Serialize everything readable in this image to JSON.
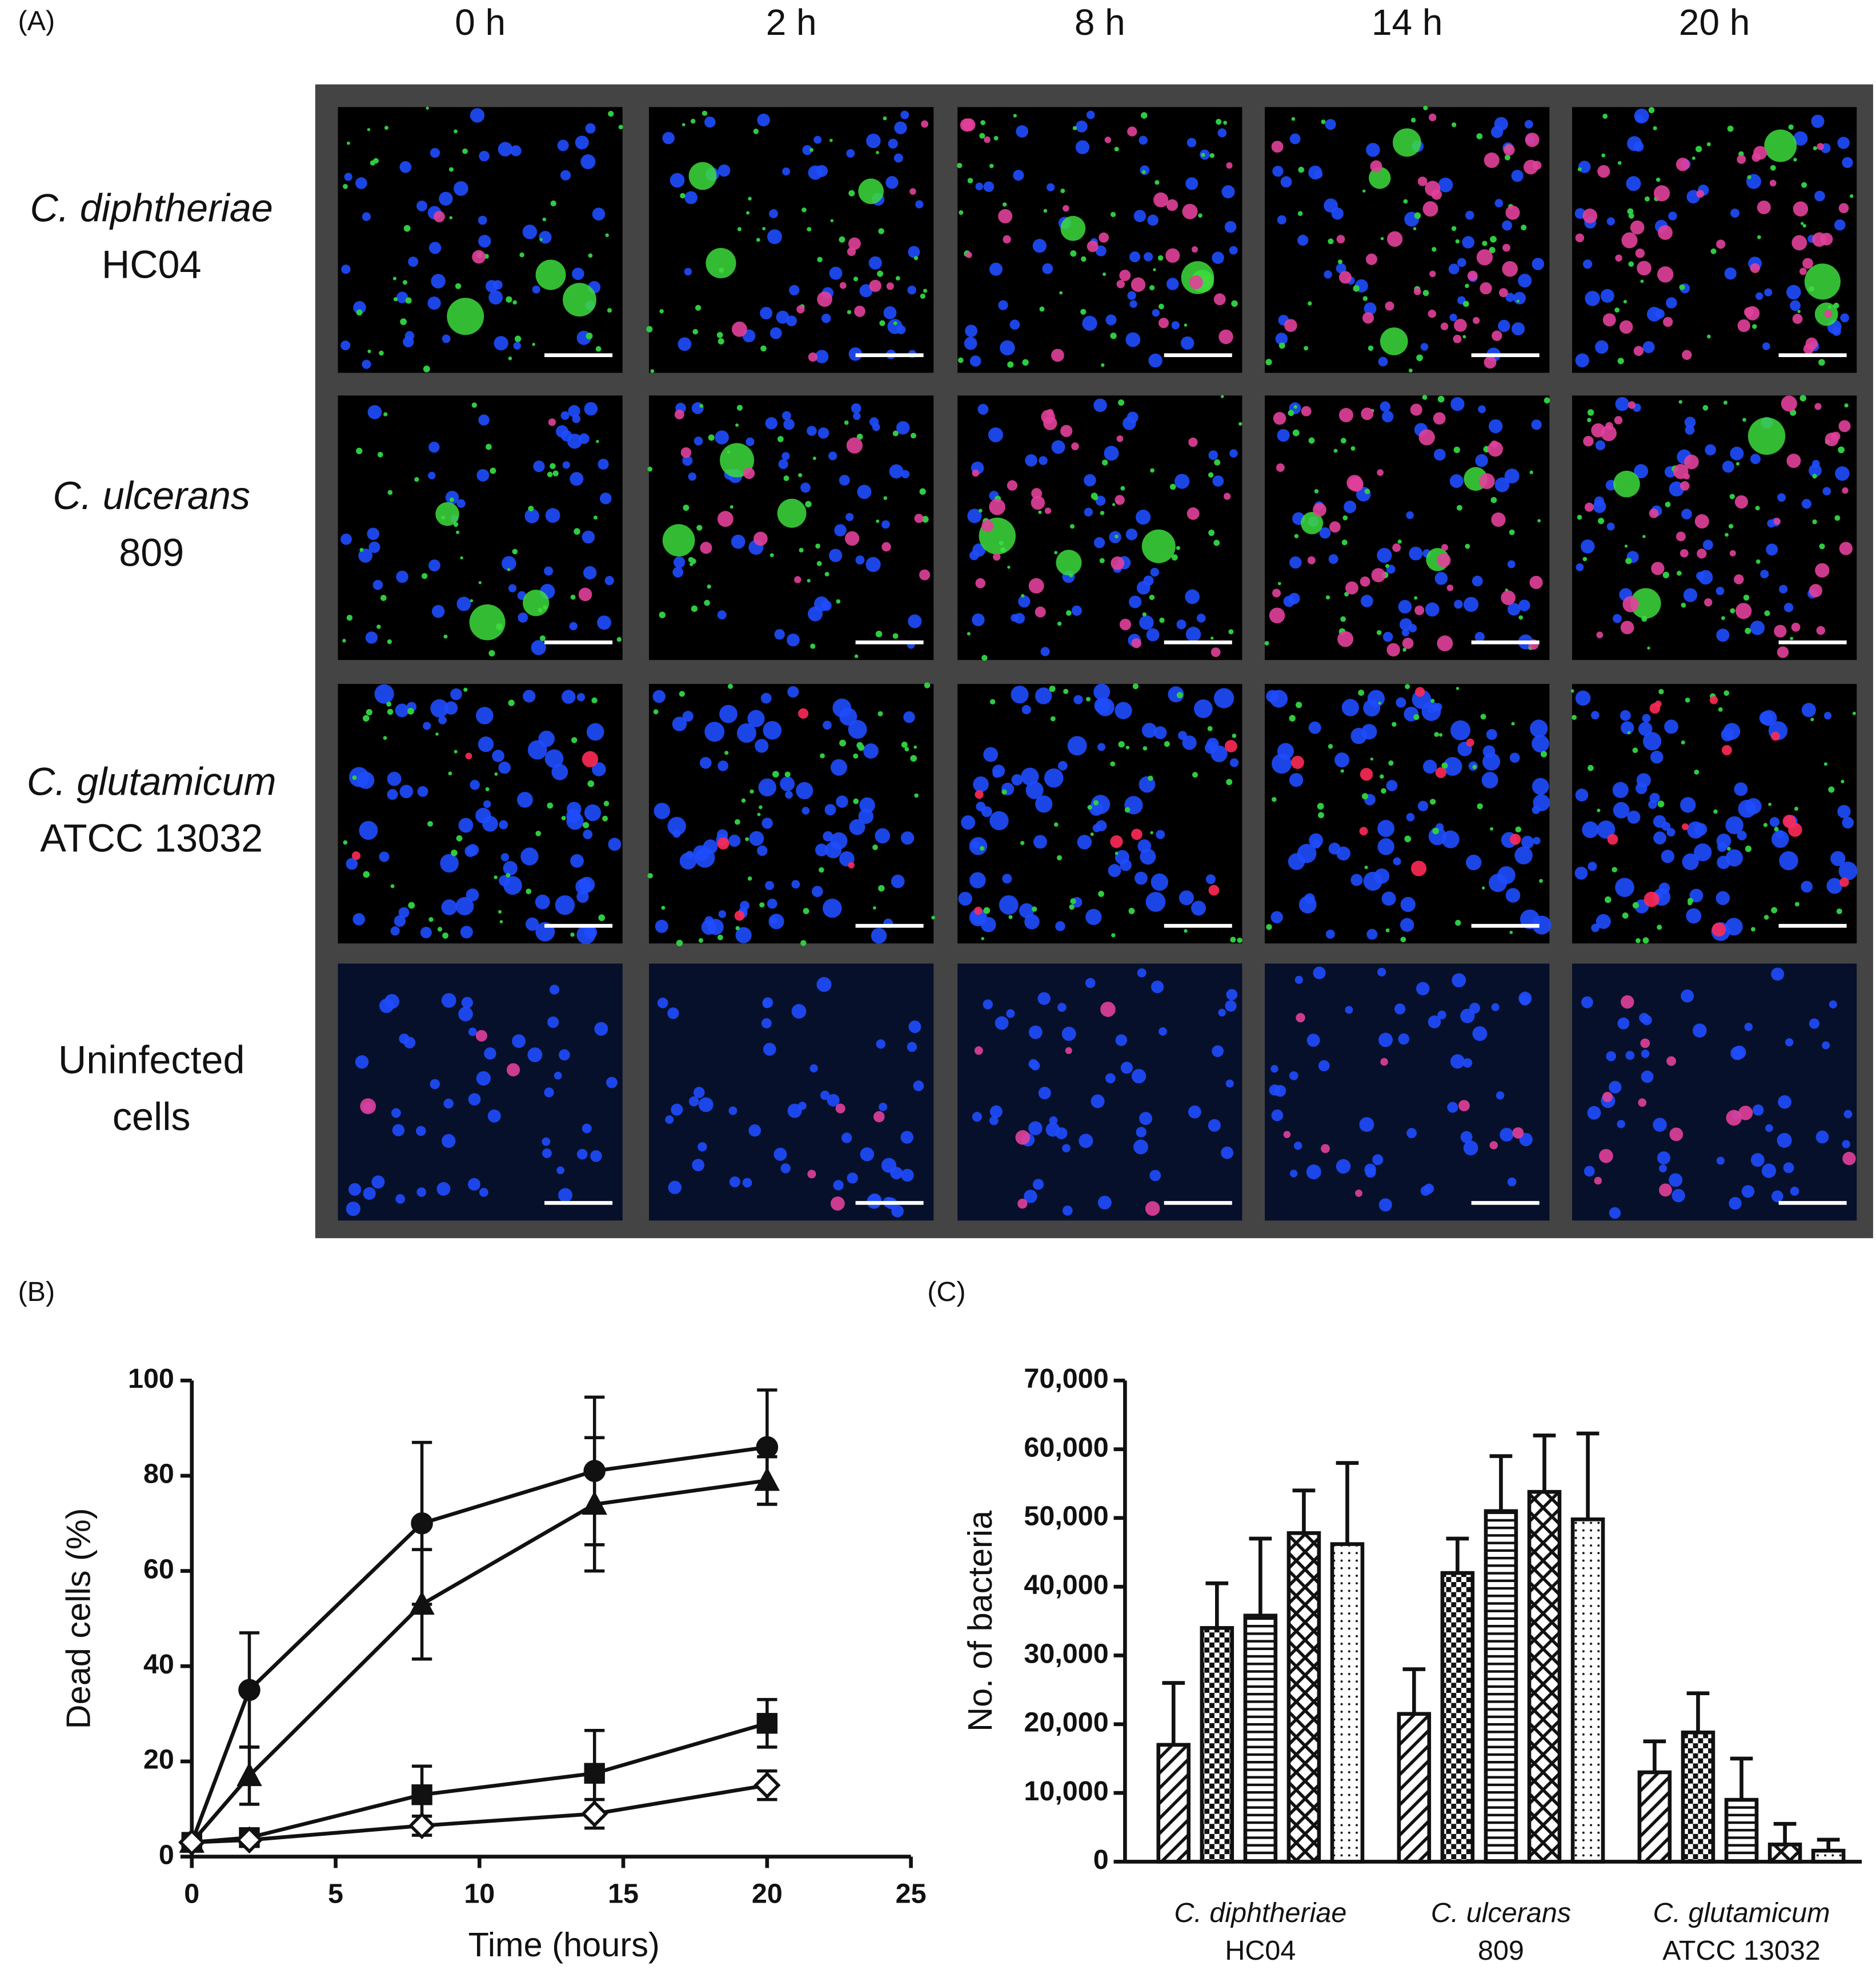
{
  "panel_a": {
    "label": "(A)",
    "columns": [
      "0 h",
      "2 h",
      "8 h",
      "14 h",
      "20 h"
    ],
    "rows": [
      [
        "C. diphtheriae",
        "HC04"
      ],
      [
        "C. ulcerans",
        "809"
      ],
      [
        "C. glutamicum",
        "ATCC 13032"
      ],
      [
        "Uninfected",
        "cells"
      ]
    ]
  },
  "chart_data": [
    {
      "type": "line",
      "panel_label": "(B)",
      "x_label": "Time (hours)",
      "y_label": "Dead cells (%)",
      "x": [
        0,
        2,
        8,
        14,
        20
      ],
      "xlim": [
        0,
        25
      ],
      "xticks": [
        0,
        5,
        10,
        15,
        20,
        25
      ],
      "ylim": [
        0,
        100
      ],
      "yticks": [
        0,
        20,
        40,
        60,
        80,
        100
      ],
      "series": [
        {
          "color": "#111111",
          "marker": "circle",
          "filled": true,
          "values": [
            3,
            35,
            70,
            81,
            86
          ],
          "errors": [
            null,
            12,
            17,
            15.5,
            12
          ]
        },
        {
          "color": "#111111",
          "marker": "triangle",
          "filled": true,
          "values": [
            3,
            17,
            53,
            74,
            79
          ],
          "errors": [
            null,
            6,
            11.5,
            14,
            5
          ]
        },
        {
          "color": "#111111",
          "marker": "square",
          "filled": true,
          "values": [
            3,
            4,
            13,
            17.5,
            28
          ],
          "errors": [
            null,
            null,
            6,
            9,
            5
          ]
        },
        {
          "color": "#111111",
          "marker": "diamond",
          "filled": false,
          "values": [
            3,
            3.5,
            6.5,
            9,
            15
          ],
          "errors": [
            null,
            null,
            2,
            3,
            3
          ]
        }
      ]
    },
    {
      "type": "bar",
      "panel_label": "(C)",
      "y_label": "No. of bacteria",
      "categories": [
        [
          "C. diphtheriae",
          "HC04"
        ],
        [
          "C. ulcerans",
          "809"
        ],
        [
          "C. glutamicum",
          "ATCC 13032"
        ]
      ],
      "ylim": [
        0,
        70000
      ],
      "yticks": [
        0,
        {
          "value": 10000,
          "label": "10,000"
        },
        {
          "value": 20000,
          "label": "20,000"
        },
        {
          "value": 30000,
          "label": "30,000"
        },
        {
          "value": 40000,
          "label": "40,000"
        },
        {
          "value": 50000,
          "label": "50,000"
        },
        {
          "value": 60000,
          "label": "60,000"
        },
        {
          "value": 70000,
          "label": "70,000"
        }
      ],
      "series": [
        {
          "color": "#111111",
          "pattern": "diagonal",
          "values": [
            17000,
            21500,
            13000
          ],
          "errors": [
            9000,
            6500,
            4500
          ]
        },
        {
          "color": "#111111",
          "pattern": "checker",
          "values": [
            34000,
            42000,
            18800
          ],
          "errors": [
            6500,
            5000,
            5700
          ]
        },
        {
          "color": "#111111",
          "pattern": "horizontal",
          "values": [
            35800,
            51000,
            9000
          ],
          "errors": [
            11200,
            8000,
            6000
          ]
        },
        {
          "color": "#111111",
          "pattern": "crosshatch",
          "values": [
            47800,
            53800,
            2500
          ],
          "errors": [
            6200,
            8200,
            3000
          ]
        },
        {
          "color": "#111111",
          "pattern": "dots",
          "values": [
            46200,
            49800,
            1600
          ],
          "errors": [
            11800,
            12500,
            1600
          ]
        }
      ]
    }
  ]
}
